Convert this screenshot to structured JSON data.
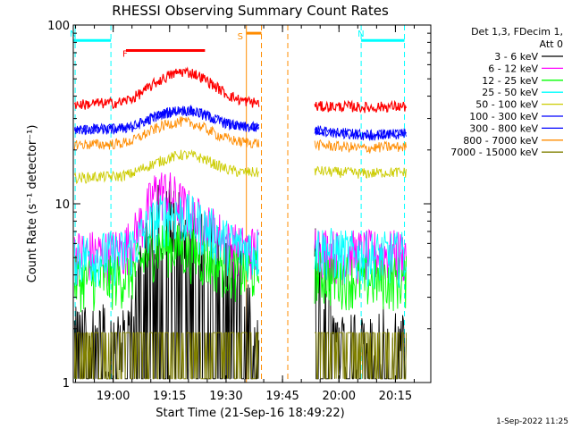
{
  "chart_data": {
    "type": "line",
    "title": "RHESSI Observing Summary Count Rates",
    "xlabel": "Start Time (21-Sep-16 18:49:22)",
    "ylabel": "Count Rate (s⁻¹ detector⁻¹)",
    "yscale": "log",
    "ylim": [
      1,
      100
    ],
    "x_units": "minutes since 18:49:22",
    "xlim": [
      0,
      95
    ],
    "x_ticks": [
      {
        "label": "19:00",
        "value": 10.6
      },
      {
        "label": "19:15",
        "value": 25.6
      },
      {
        "label": "19:30",
        "value": 40.6
      },
      {
        "label": "19:45",
        "value": 55.6
      },
      {
        "label": "20:00",
        "value": 70.6
      },
      {
        "label": "20:15",
        "value": 85.6
      }
    ],
    "y_ticks": [
      {
        "label": "1",
        "value": 1
      },
      {
        "label": "10",
        "value": 10
      },
      {
        "label": "100",
        "value": 100
      }
    ],
    "legend_header": [
      "Det 1,3, FDecim 1,",
      "Att 0"
    ],
    "data_gap": [
      49.5,
      64.0
    ],
    "series": [
      {
        "name": "3 - 6 keV",
        "color": "#000000",
        "values": [
          1.9,
          1.9,
          1.9,
          1.9,
          1.6,
          2.2,
          5.3,
          8.6,
          9.0,
          8.0,
          7.0,
          6.0,
          5.5,
          4.3,
          3.8,
          1.9,
          1.9,
          9.0,
          8.0,
          7.0,
          5.5,
          4.2,
          1.9,
          1.9,
          1.9,
          1.9,
          1.9,
          1.9,
          1.9,
          1.9,
          1.9
        ]
      },
      {
        "name": "6 - 12 keV",
        "color": "#ff00ff",
        "values": [
          5.3,
          5.3,
          5.3,
          5.3,
          5.5,
          6.3,
          8.6,
          12.0,
          11.5,
          10.0,
          8.5,
          7.6,
          7.0,
          6.0,
          5.6,
          5.6,
          5.6,
          8.5,
          8.0,
          7.0,
          6.2,
          5.6,
          5.3,
          5.3,
          5.3,
          5.3,
          5.3,
          5.3,
          5.3,
          5.3,
          5.3
        ]
      },
      {
        "name": "12 - 25 keV",
        "color": "#00ff00",
        "values": [
          3.8,
          3.8,
          3.8,
          3.8,
          3.9,
          4.2,
          5.0,
          5.8,
          5.9,
          5.7,
          5.4,
          5.0,
          4.7,
          4.4,
          4.2,
          4.2,
          4.0,
          4.6,
          4.6,
          4.4,
          4.2,
          4.0,
          3.9,
          3.9,
          3.8,
          3.8,
          3.8,
          3.8,
          3.8,
          3.8,
          3.8
        ]
      },
      {
        "name": "25 - 50 keV",
        "color": "#00ffff",
        "values": [
          5.2,
          5.2,
          5.2,
          5.2,
          5.3,
          5.8,
          7.0,
          8.2,
          8.8,
          8.8,
          8.2,
          7.4,
          6.8,
          6.0,
          5.8,
          5.6,
          5.4,
          6.8,
          6.6,
          6.2,
          6.0,
          5.6,
          5.4,
          5.3,
          5.2,
          5.2,
          5.2,
          5.2,
          5.2,
          5.2,
          5.2
        ]
      },
      {
        "name": "50 - 100 keV",
        "color": "#cccc00",
        "values": [
          14.0,
          14.0,
          14.2,
          14.2,
          14.3,
          14.8,
          16.0,
          17.0,
          18.0,
          18.8,
          18.6,
          17.8,
          16.5,
          15.5,
          15.0,
          15.0,
          14.8,
          15.5,
          15.6,
          15.5,
          15.4,
          15.2,
          15.0,
          15.0,
          14.8,
          14.8,
          15.0,
          15.0,
          15.0,
          15.0,
          15.0
        ]
      },
      {
        "name": "100 - 300 keV",
        "color": "#0000ff",
        "values": [
          26.0,
          26.0,
          26.2,
          26.2,
          26.3,
          27.0,
          29.0,
          31.0,
          32.5,
          33.5,
          33.0,
          31.5,
          29.5,
          28.0,
          27.0,
          26.8,
          26.5,
          26.5,
          26.3,
          26.0,
          26.0,
          25.5,
          25.0,
          24.8,
          24.5,
          24.2,
          24.5,
          24.5,
          24.5,
          24.5,
          24.5
        ]
      },
      {
        "name": "300 - 800 keV",
        "color": "#0000ff",
        "values": [
          26.0,
          26.0,
          26.2,
          26.2,
          26.3,
          27.0,
          29.0,
          31.0,
          32.5,
          33.5,
          33.0,
          31.5,
          29.5,
          28.0,
          27.0,
          26.8,
          26.5,
          26.5,
          26.3,
          26.0,
          26.0,
          25.5,
          25.0,
          24.8,
          24.5,
          24.2,
          24.5,
          24.5,
          24.5,
          24.5,
          24.5
        ]
      },
      {
        "name": "800 - 7000 keV",
        "color": "#ff8c00",
        "values": [
          21.5,
          21.5,
          21.5,
          21.5,
          21.8,
          22.5,
          24.5,
          26.5,
          28.0,
          28.8,
          28.2,
          26.5,
          24.5,
          23.0,
          22.2,
          22.0,
          21.8,
          21.8,
          21.6,
          21.5,
          21.4,
          21.2,
          21.0,
          20.8,
          20.5,
          20.5,
          20.8,
          20.8,
          20.8,
          20.8,
          20.8
        ]
      },
      {
        "name": "7000 - 15000 keV",
        "color": "#808000",
        "values": [
          1.9,
          1.9,
          1.9,
          1.9,
          1.9,
          1.9,
          1.9,
          1.9,
          1.9,
          1.9,
          1.9,
          1.9,
          1.9,
          1.9,
          1.9,
          1.9,
          1.9,
          1.9,
          1.9,
          1.9,
          1.9,
          1.9,
          1.9,
          1.9,
          1.9,
          1.9,
          1.9,
          1.9,
          1.9,
          1.9,
          1.9
        ]
      },
      {
        "name": "red",
        "color": "#ff0000",
        "values": [
          36.0,
          36.0,
          36.5,
          36.5,
          37.0,
          39.0,
          43.0,
          48.0,
          52.0,
          55.0,
          54.0,
          50.0,
          45.0,
          40.5,
          38.0,
          37.0,
          36.5,
          35.5,
          35.5,
          35.0,
          35.0,
          35.0,
          35.0,
          35.0,
          34.8,
          34.5,
          35.0,
          35.0,
          35.0,
          35.0,
          35.0
        ]
      }
    ],
    "legend": [
      {
        "label": "3 - 6 keV",
        "color": "#000000"
      },
      {
        "label": "6 - 12 keV",
        "color": "#ff00ff"
      },
      {
        "label": "12 - 25 keV",
        "color": "#00ff00"
      },
      {
        "label": "25 - 50 keV",
        "color": "#00ffff"
      },
      {
        "label": "50 - 100 keV",
        "color": "#cccc00"
      },
      {
        "label": "100 - 300 keV",
        "color": "#0000ff"
      },
      {
        "label": "300 - 800 keV",
        "color": "#0000ff"
      },
      {
        "label": "800 - 7000 keV",
        "color": "#ff8c00"
      },
      {
        "label": "7000 - 15000 keV",
        "color": "#808000"
      }
    ],
    "flags": [
      {
        "label": "N",
        "color": "#00ffff",
        "start": 0,
        "end": 10.0,
        "level": 82
      },
      {
        "label": "N",
        "color": "#00ffff",
        "start": 76.5,
        "end": 88,
        "level": 82
      },
      {
        "label": "F",
        "color": "#ff0000",
        "start": 14.0,
        "end": 35.0,
        "level": 72
      },
      {
        "label": "S",
        "color": "#ff8c00",
        "start": 46.0,
        "end": 50.0,
        "level": 90
      }
    ],
    "vlines": [
      {
        "value": 0.5,
        "color": "#00ffff",
        "style": "dashed"
      },
      {
        "value": 10.0,
        "color": "#00ffff",
        "style": "dashed"
      },
      {
        "value": 76.5,
        "color": "#00ffff",
        "style": "dashed"
      },
      {
        "value": 88.0,
        "color": "#00ffff",
        "style": "dashed"
      },
      {
        "value": 46.0,
        "color": "#ff8c00",
        "style": "solid"
      },
      {
        "value": 50.0,
        "color": "#ff8c00",
        "style": "dashed"
      },
      {
        "value": 57.0,
        "color": "#ff8c00",
        "style": "dashed"
      }
    ],
    "footer_text": "1-Sep-2022 11:25"
  }
}
